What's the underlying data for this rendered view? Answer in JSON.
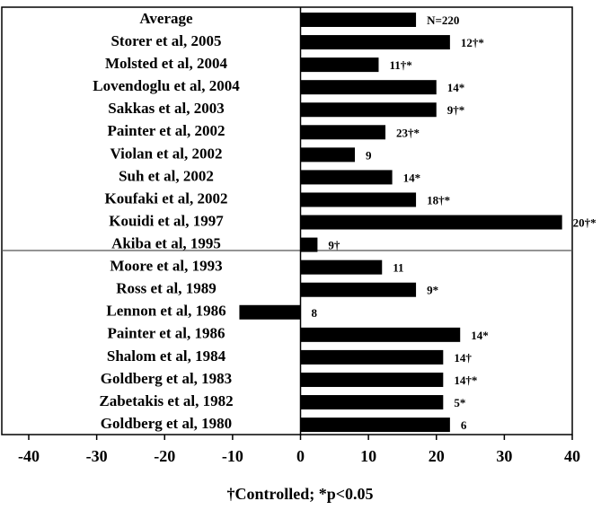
{
  "chart_data": {
    "type": "barh",
    "categories": [
      "Average",
      "Storer et al, 2005",
      "Molsted et al, 2004",
      "Lovendoglu et al, 2004",
      "Sakkas et al, 2003",
      "Painter et al, 2002",
      "Violan et al, 2002",
      "Suh et al, 2002",
      "Koufaki et al, 2002",
      "Kouidi et al, 1997",
      "Akiba et al, 1995",
      "Moore et al, 1993",
      "Ross et al, 1989",
      "Lennon et al, 1986",
      "Painter et al, 1986",
      "Shalom et al, 1984",
      "Goldberg et al, 1983",
      "Zabetakis et al, 1982",
      "Goldberg et al, 1980"
    ],
    "values": [
      17,
      22,
      11.5,
      20,
      20,
      12.5,
      8,
      13.5,
      17,
      38.5,
      2.5,
      12,
      17,
      -9,
      23.5,
      21,
      21,
      21,
      22
    ],
    "annotations": [
      "N=220",
      "12†*",
      "11†*",
      "14*",
      "9†*",
      "23†*",
      "9",
      "14*",
      "18†*",
      "20†*",
      "9†",
      "11",
      "9*",
      "8",
      "14*",
      "14†",
      "14†*",
      "5*",
      "6"
    ],
    "color": "#000000",
    "xlim": [
      -40,
      40
    ],
    "xticks": [
      -40,
      -30,
      -20,
      -10,
      0,
      10,
      20,
      30,
      40
    ],
    "xlabel": "†Controlled; *p<0.05"
  }
}
